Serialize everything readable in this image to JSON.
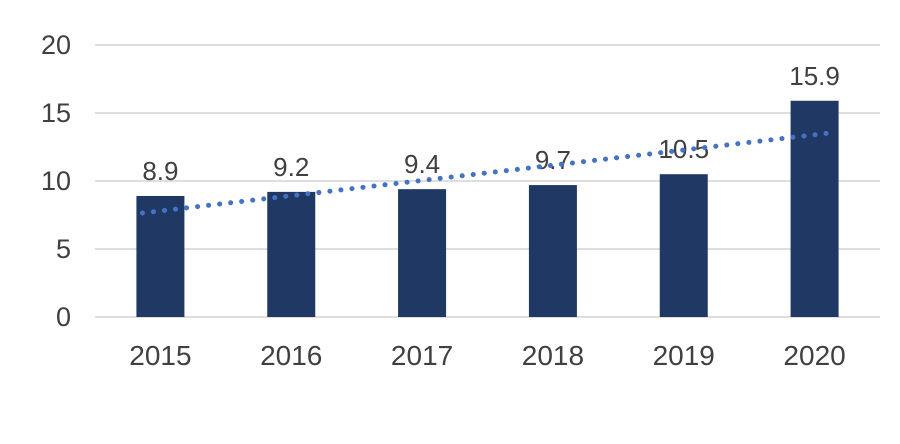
{
  "chart_data": {
    "type": "bar",
    "title": "",
    "xlabel": "",
    "ylabel": "",
    "categories": [
      "2015",
      "2016",
      "2017",
      "2018",
      "2019",
      "2020"
    ],
    "values": [
      8.9,
      9.2,
      9.4,
      9.7,
      10.5,
      15.9
    ],
    "data_labels": [
      "8.9",
      "9.2",
      "9.4",
      "9.7",
      "10.5",
      "15.9"
    ],
    "ylim": [
      0,
      20
    ],
    "yticks": [
      0,
      5,
      10,
      15,
      20
    ],
    "grid": true,
    "legend": false,
    "colors": {
      "bar": "#1f3864",
      "trendline": "#4472c4",
      "gridline": "#d9d9d9",
      "axis_text": "#404040",
      "data_label_text": "#404040",
      "background": "#ffffff"
    },
    "trendline": {
      "type": "linear",
      "style": "dotted",
      "start_value": 7.8,
      "end_value": 13.4
    }
  }
}
